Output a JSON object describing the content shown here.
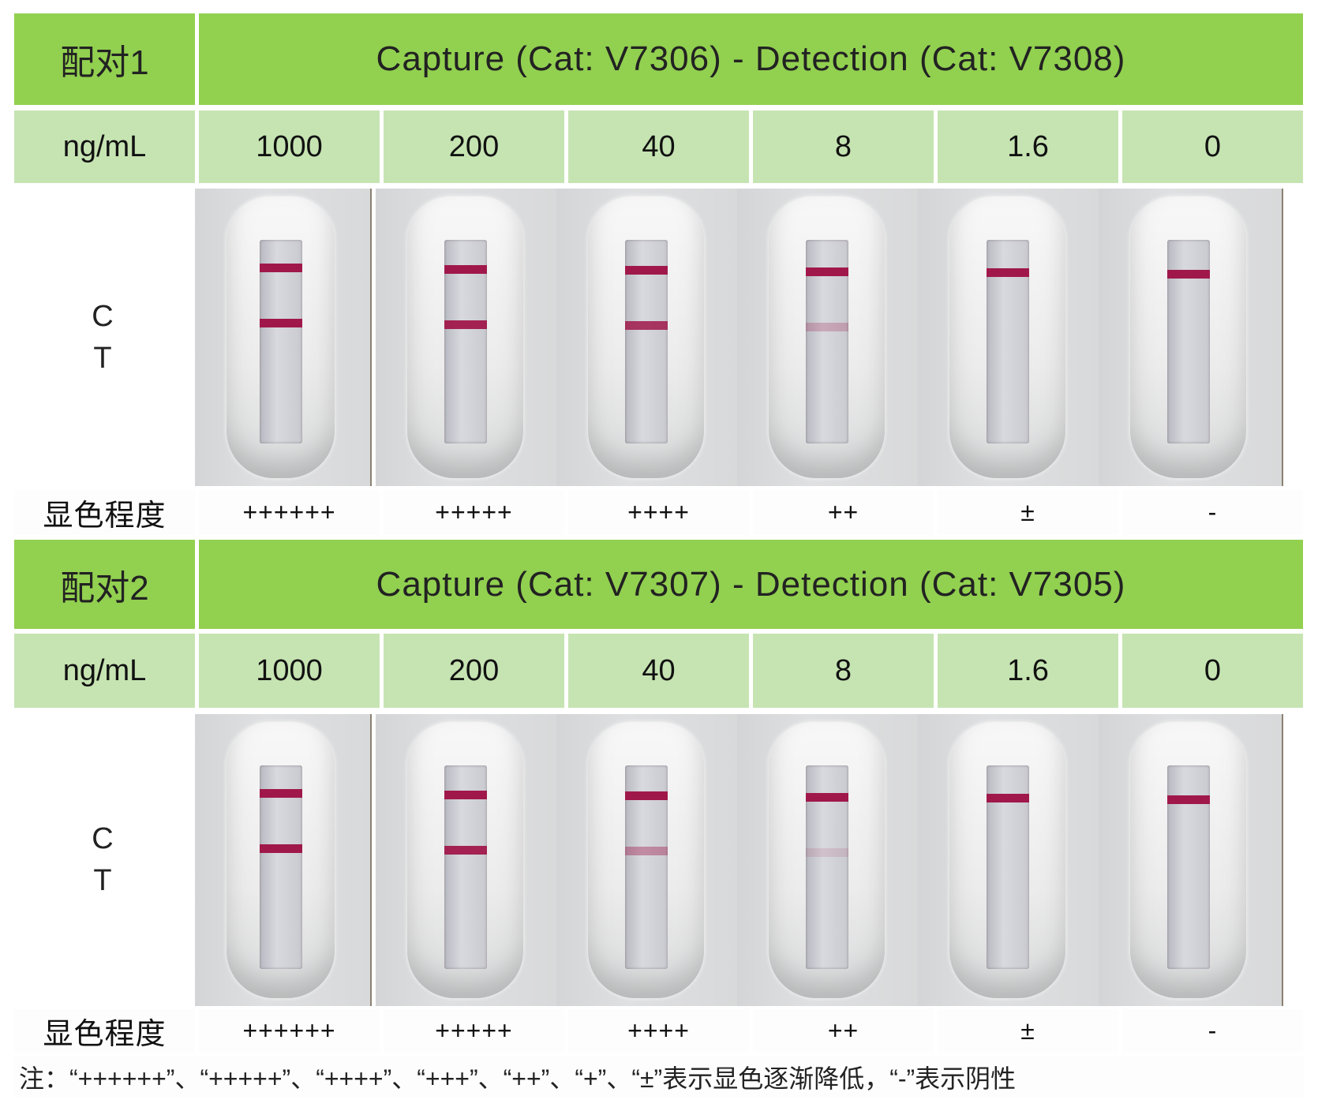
{
  "pairs": [
    {
      "label": "配对1",
      "title": "Capture (Cat: V7306) - Detection (Cat: V7308)",
      "unit": "ng/mL",
      "concentrations": [
        "1000",
        "200",
        "40",
        "8",
        "1.6",
        "0"
      ],
      "c_label": "C",
      "t_label": "T",
      "grade_label": "显色程度",
      "grades": [
        "++++++",
        "+++++",
        "++++",
        "++",
        "±",
        "-"
      ],
      "t_line_intensity": [
        1,
        0.95,
        0.85,
        0.25,
        0,
        0
      ]
    },
    {
      "label": "配对2",
      "title": "Capture (Cat: V7307) - Detection (Cat: V7305)",
      "unit": "ng/mL",
      "concentrations": [
        "1000",
        "200",
        "40",
        "8",
        "1.6",
        "0"
      ],
      "c_label": "C",
      "t_label": "T",
      "grade_label": "显色程度",
      "grades": [
        "++++++",
        "+++++",
        "++++",
        "++",
        "±",
        "-"
      ],
      "t_line_intensity": [
        1,
        0.95,
        0.4,
        0.12,
        0,
        0
      ]
    }
  ],
  "colors": {
    "header_green": "#92d050",
    "light_green": "#c6e4b2",
    "line_red": "#a0184a"
  },
  "note": "注：“++++++”、“+++++”、“++++”、“+++”、“++”、“+”、“±”表示显色逐渐降低，“-”表示阴性"
}
